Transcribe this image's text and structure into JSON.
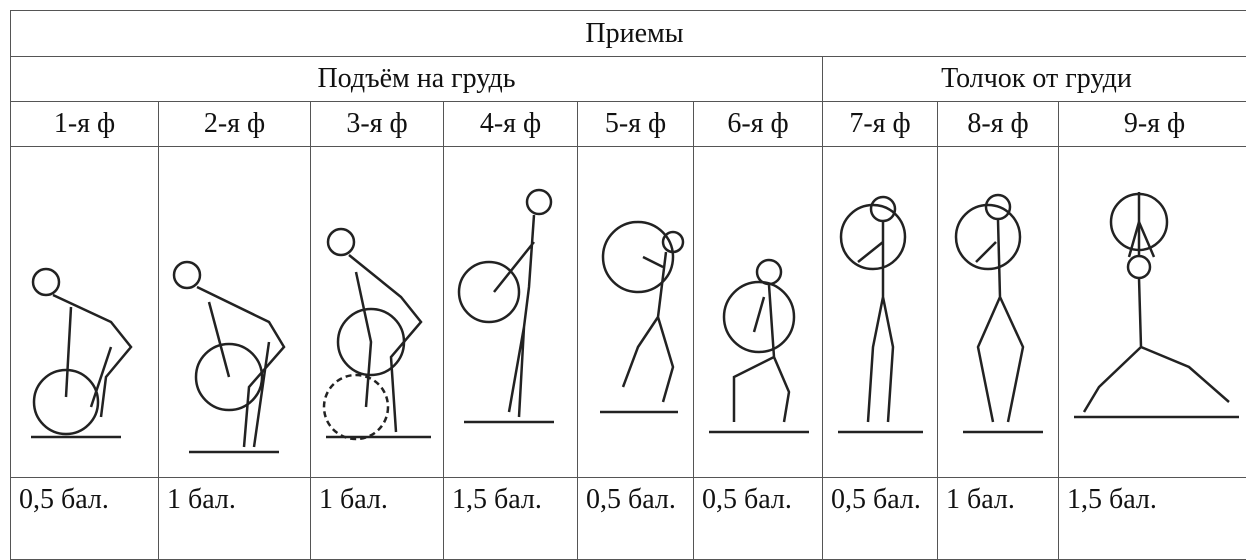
{
  "table": {
    "title": "Приемы",
    "groups": [
      "Подъём на грудь",
      "Толчок от груди"
    ],
    "phases": [
      "1-я ф",
      "2-я ф",
      "3-я ф",
      "4-я ф",
      "5-я ф",
      "6-я ф",
      "7-я ф",
      "8-я ф",
      "9-я ф"
    ],
    "scores": [
      "0,5 бал.",
      "1 бал.",
      "1 бал.",
      "1,5 бал.",
      "0,5 бал.",
      "0,5 бал.",
      "0,5 бал.",
      "1 бал.",
      "1,5 бал."
    ]
  }
}
